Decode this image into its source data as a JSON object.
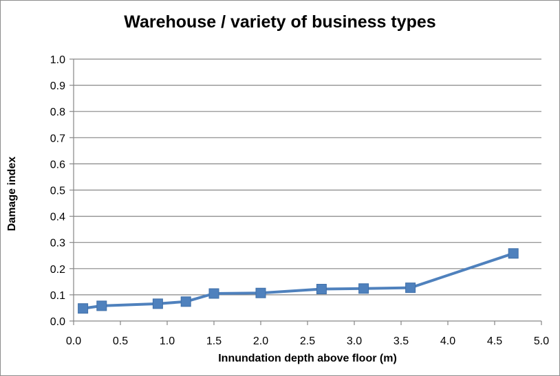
{
  "chart_data": {
    "type": "line",
    "title": "Warehouse / variety of business types",
    "xlabel": "Innundation depth above floor (m)",
    "ylabel": "Damage index",
    "xlim": [
      0.0,
      5.0
    ],
    "ylim": [
      0.0,
      1.0
    ],
    "x_ticks": [
      "0.0",
      "0.5",
      "1.0",
      "1.5",
      "2.0",
      "2.5",
      "3.0",
      "3.5",
      "4.0",
      "4.5",
      "5.0"
    ],
    "y_ticks": [
      "0.0",
      "0.1",
      "0.2",
      "0.3",
      "0.4",
      "0.5",
      "0.6",
      "0.7",
      "0.8",
      "0.9",
      "1.0"
    ],
    "grid": true,
    "legend": false,
    "series": [
      {
        "color": "#4f81bd",
        "marker": "square",
        "x": [
          0.1,
          0.3,
          0.9,
          1.2,
          1.5,
          2.0,
          2.65,
          3.1,
          3.6,
          4.7
        ],
        "y": [
          0.048,
          0.058,
          0.066,
          0.074,
          0.105,
          0.107,
          0.122,
          0.124,
          0.127,
          0.258
        ]
      }
    ]
  }
}
